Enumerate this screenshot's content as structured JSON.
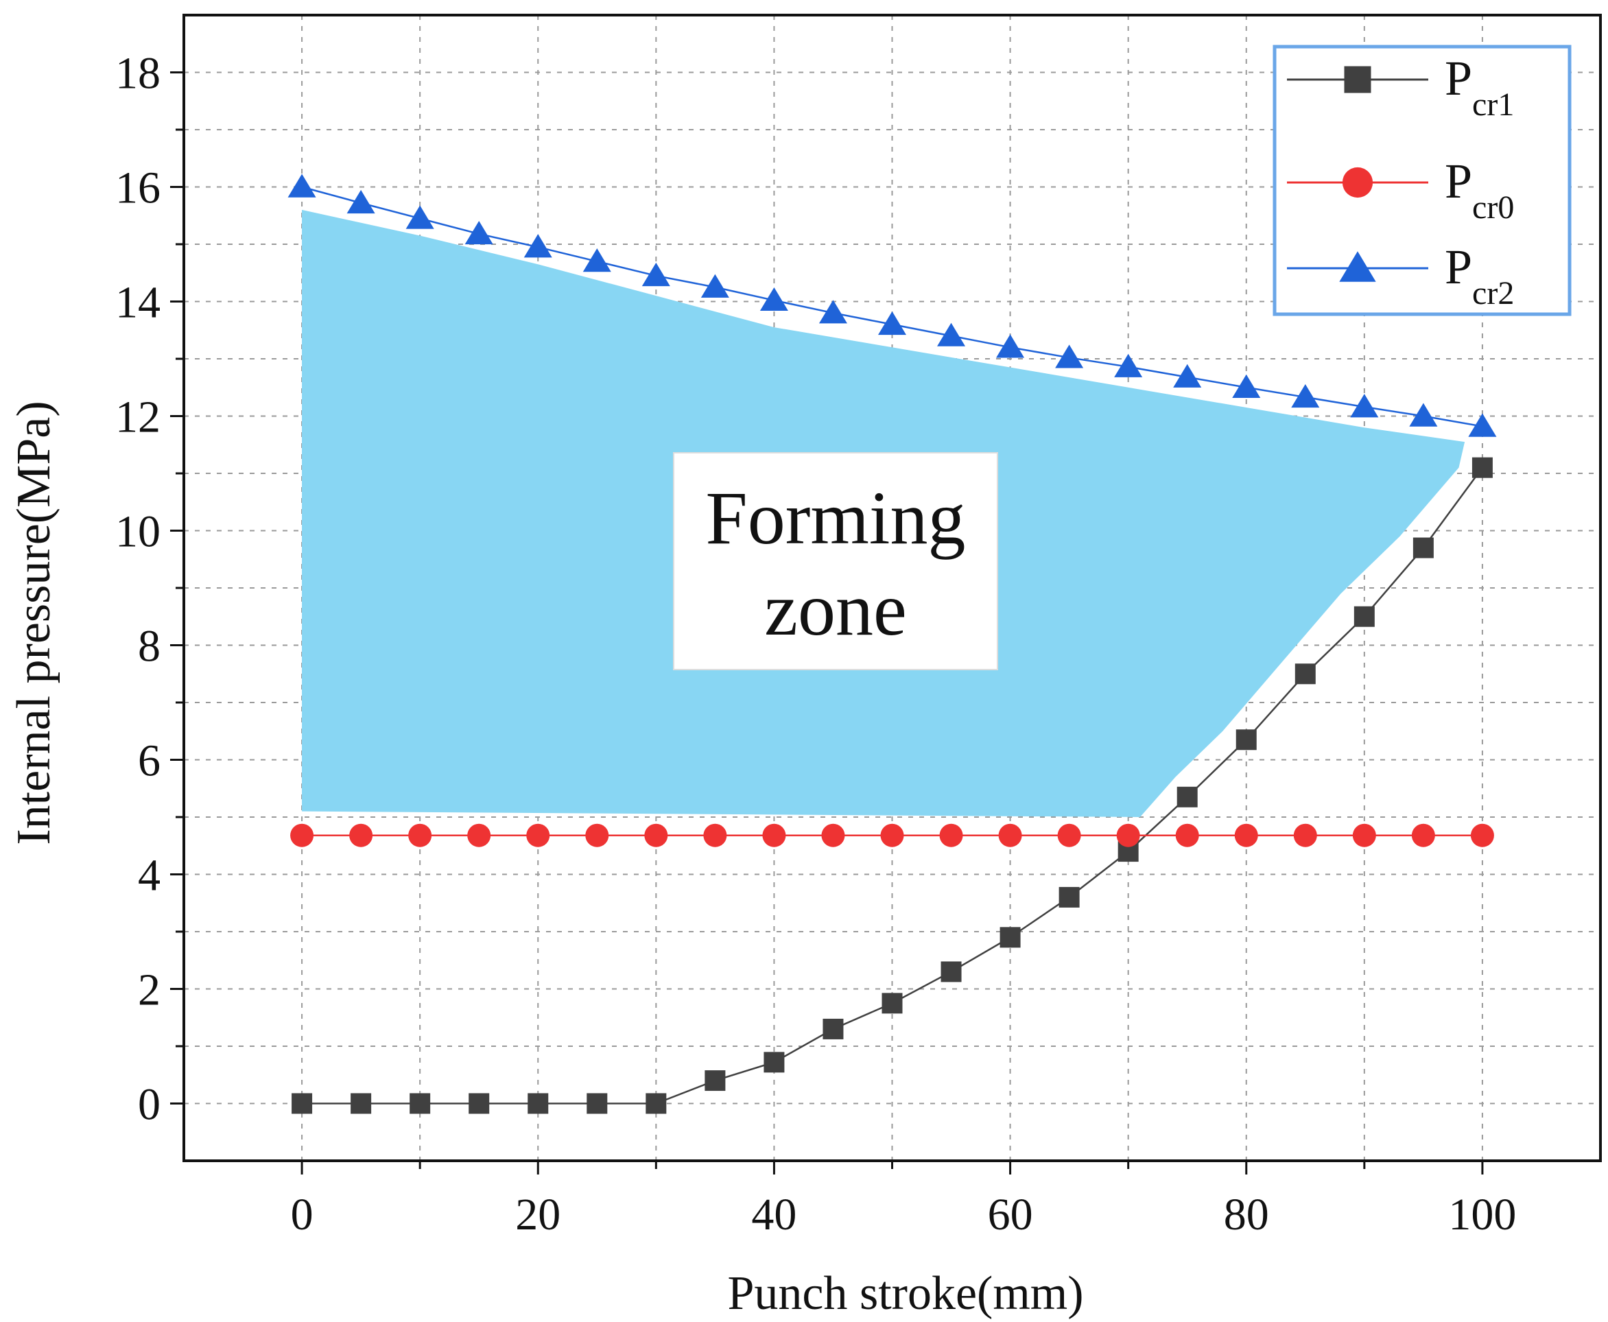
{
  "chart_data": {
    "type": "line",
    "title": "",
    "xlabel": "Punch stroke(mm)",
    "ylabel": "Internal pressure(MPa)",
    "xlim": [
      -10,
      110
    ],
    "ylim": [
      -1,
      19
    ],
    "xticks": [
      0,
      20,
      40,
      60,
      80,
      100
    ],
    "yticks": [
      0,
      2,
      4,
      6,
      8,
      10,
      12,
      14,
      16,
      18
    ],
    "grid": true,
    "legend_position": "top-right",
    "x": [
      0,
      5,
      10,
      15,
      20,
      25,
      30,
      35,
      40,
      45,
      50,
      55,
      60,
      65,
      70,
      75,
      80,
      85,
      90,
      95,
      100
    ],
    "series": [
      {
        "name": "P",
        "subscript": "cr1",
        "color": "#404040",
        "marker": "square",
        "values": [
          0,
          0,
          0,
          0,
          0,
          0,
          0,
          0.4,
          0.72,
          1.3,
          1.75,
          2.3,
          2.9,
          3.6,
          4.4,
          5.35,
          6.35,
          7.5,
          8.5,
          9.7,
          11.1
        ]
      },
      {
        "name": "P",
        "subscript": "cr0",
        "color": "#ee3333",
        "marker": "circle",
        "values": [
          4.68,
          4.68,
          4.68,
          4.68,
          4.68,
          4.68,
          4.68,
          4.68,
          4.68,
          4.68,
          4.68,
          4.68,
          4.68,
          4.68,
          4.68,
          4.68,
          4.68,
          4.68,
          4.68,
          4.68,
          4.68
        ]
      },
      {
        "name": "P",
        "subscript": "cr2",
        "color": "#1f63d8",
        "marker": "triangle",
        "values": [
          16.0,
          15.72,
          15.45,
          15.18,
          14.95,
          14.7,
          14.45,
          14.25,
          14.02,
          13.8,
          13.6,
          13.4,
          13.2,
          13.02,
          12.86,
          12.68,
          12.5,
          12.33,
          12.16,
          12.0,
          11.82
        ]
      }
    ],
    "region": {
      "label_line1": "Forming",
      "label_line2": "zone",
      "color": "#88d6f3",
      "polygon": [
        [
          0,
          15.6
        ],
        [
          10,
          15.15
        ],
        [
          20,
          14.65
        ],
        [
          30,
          14.1
        ],
        [
          40,
          13.55
        ],
        [
          50,
          13.2
        ],
        [
          60,
          12.85
        ],
        [
          70,
          12.5
        ],
        [
          80,
          12.15
        ],
        [
          90,
          11.8
        ],
        [
          98.5,
          11.55
        ],
        [
          98,
          11.1
        ],
        [
          93,
          9.9
        ],
        [
          88,
          8.9
        ],
        [
          83,
          7.7
        ],
        [
          78,
          6.5
        ],
        [
          74,
          5.7
        ],
        [
          71,
          5.0
        ],
        [
          0,
          5.1
        ]
      ]
    }
  }
}
